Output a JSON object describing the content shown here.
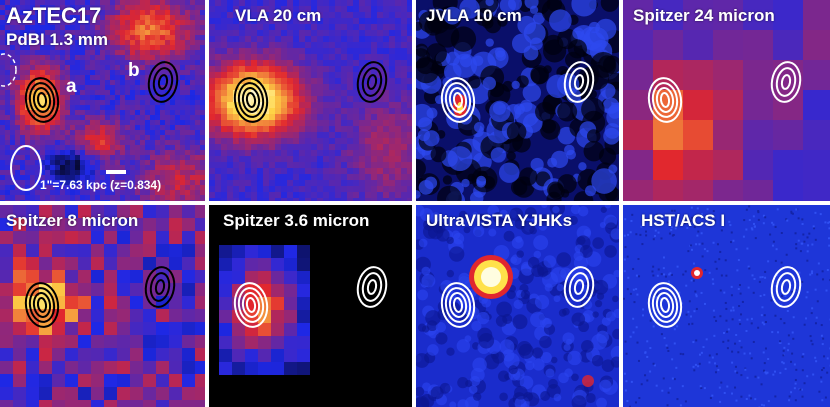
{
  "panels": [
    {
      "key": "p1",
      "style": "heat",
      "contour": "dark",
      "labels": {
        "title": "AzTEC17",
        "subtitle": "PdBI 1.3 mm",
        "source_a": "a",
        "source_b": "b",
        "scale": "1\"=7.63 kpc (z=0.834)"
      }
    },
    {
      "key": "p2",
      "style": "vla",
      "contour": "dark",
      "labels": {
        "title": "VLA 20 cm"
      }
    },
    {
      "key": "p3",
      "style": "noise",
      "contour": "white",
      "labels": {
        "title": "JVLA 10 cm"
      }
    },
    {
      "key": "p4",
      "style": "pixel-blue",
      "contour": "white",
      "labels": {
        "title": "Spitzer 24 micron"
      }
    },
    {
      "key": "p5",
      "style": "pixel-heat",
      "contour": "dark",
      "labels": {
        "title": "Spitzer 8 micron"
      }
    },
    {
      "key": "p6",
      "style": "irac",
      "contour": "white",
      "labels": {
        "title": "Spitzer 3.6 micron"
      }
    },
    {
      "key": "p7",
      "style": "noise-star",
      "contour": "white",
      "labels": {
        "title": "UltraVISTA YJHKs"
      }
    },
    {
      "key": "p8",
      "style": "acs",
      "contour": "white",
      "labels": {
        "title": "HST/ACS I"
      }
    }
  ],
  "colors": {
    "blue": "#1a2fe0",
    "red": "#e0262e",
    "yellow": "#ffe14a",
    "black": "#000000",
    "white": "#ffffff"
  }
}
